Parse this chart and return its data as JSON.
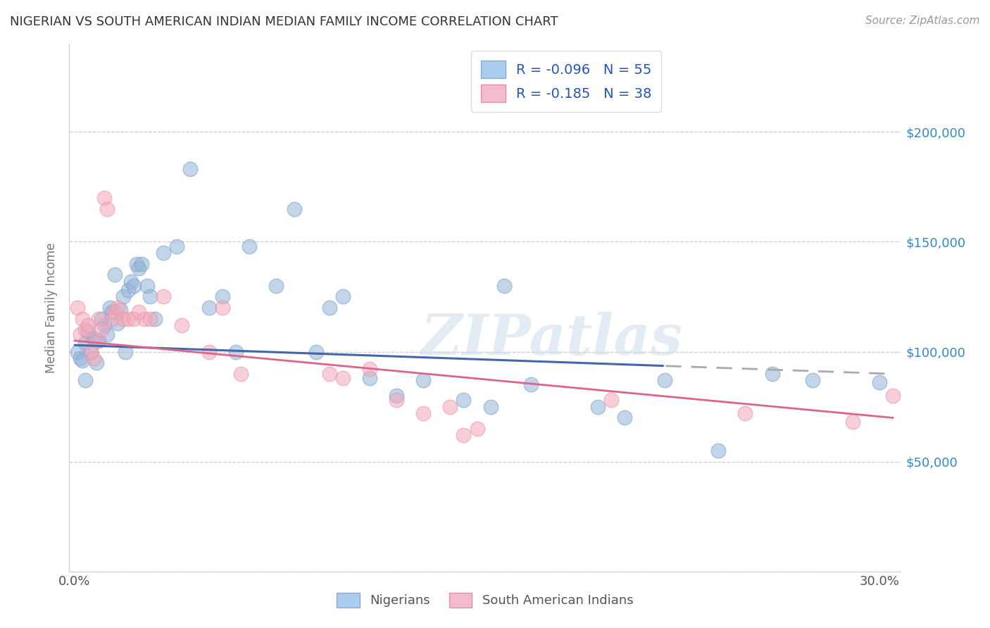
{
  "title": "NIGERIAN VS SOUTH AMERICAN INDIAN MEDIAN FAMILY INCOME CORRELATION CHART",
  "source": "Source: ZipAtlas.com",
  "ylabel": "Median Family Income",
  "watermark": "ZIPatlas",
  "series1_name": "Nigerians",
  "series1_color": "#92B4D8",
  "series1_edge": "#7A9EC8",
  "series1_R": -0.096,
  "series1_N": 55,
  "series2_name": "South American Indians",
  "series2_color": "#F4A8B8",
  "series2_edge": "#E890A8",
  "series2_R": -0.185,
  "series2_N": 38,
  "ylim": [
    0,
    240000
  ],
  "xlim": [
    -0.002,
    0.308
  ],
  "yticks": [
    0,
    50000,
    100000,
    150000,
    200000
  ],
  "ytick_labels_right": [
    "",
    "$50,000",
    "$100,000",
    "$150,000",
    "$200,000"
  ],
  "xticks": [
    0.0,
    0.05,
    0.1,
    0.15,
    0.2,
    0.25,
    0.3
  ],
  "xtick_labels": [
    "0.0%",
    "",
    "",
    "",
    "",
    "",
    "30.0%"
  ],
  "series1_x": [
    0.001,
    0.002,
    0.003,
    0.004,
    0.004,
    0.005,
    0.006,
    0.007,
    0.008,
    0.009,
    0.01,
    0.011,
    0.012,
    0.013,
    0.014,
    0.015,
    0.016,
    0.017,
    0.018,
    0.019,
    0.02,
    0.021,
    0.022,
    0.023,
    0.024,
    0.025,
    0.027,
    0.028,
    0.03,
    0.033,
    0.038,
    0.043,
    0.05,
    0.055,
    0.06,
    0.065,
    0.075,
    0.082,
    0.09,
    0.095,
    0.1,
    0.11,
    0.12,
    0.13,
    0.145,
    0.155,
    0.16,
    0.17,
    0.195,
    0.205,
    0.22,
    0.24,
    0.26,
    0.275,
    0.3
  ],
  "series1_y": [
    100000,
    97000,
    96000,
    104000,
    87000,
    109000,
    100000,
    106000,
    95000,
    105000,
    115000,
    112000,
    108000,
    120000,
    118000,
    135000,
    113000,
    119000,
    125000,
    100000,
    128000,
    132000,
    130000,
    140000,
    138000,
    140000,
    130000,
    125000,
    115000,
    145000,
    148000,
    183000,
    120000,
    125000,
    100000,
    148000,
    130000,
    165000,
    100000,
    120000,
    125000,
    88000,
    80000,
    87000,
    78000,
    75000,
    130000,
    85000,
    75000,
    70000,
    87000,
    55000,
    90000,
    87000,
    86000
  ],
  "series2_x": [
    0.001,
    0.002,
    0.003,
    0.004,
    0.005,
    0.006,
    0.007,
    0.008,
    0.009,
    0.01,
    0.011,
    0.012,
    0.014,
    0.015,
    0.016,
    0.018,
    0.02,
    0.022,
    0.024,
    0.026,
    0.028,
    0.033,
    0.04,
    0.05,
    0.055,
    0.062,
    0.095,
    0.1,
    0.11,
    0.12,
    0.13,
    0.14,
    0.145,
    0.15,
    0.2,
    0.25,
    0.29,
    0.305
  ],
  "series2_y": [
    120000,
    108000,
    115000,
    110000,
    112000,
    100000,
    97000,
    105000,
    115000,
    110000,
    170000,
    165000,
    115000,
    118000,
    120000,
    115000,
    115000,
    115000,
    118000,
    115000,
    115000,
    125000,
    112000,
    100000,
    120000,
    90000,
    90000,
    88000,
    92000,
    78000,
    72000,
    75000,
    62000,
    65000,
    78000,
    72000,
    68000,
    80000
  ],
  "trend_blue_solid_end": 0.22,
  "trend_blue_color": "#4466AA",
  "trend_pink_color": "#DD6688",
  "trend_gray_color": "#AAAAAA",
  "background_color": "#FFFFFF",
  "grid_color": "#CCCCCC",
  "title_color": "#333333",
  "axis_label_color": "#777777",
  "right_ytick_color": "#3388CC",
  "watermark_color": "#CCDDEE",
  "legend_text_color": "#2255BB"
}
